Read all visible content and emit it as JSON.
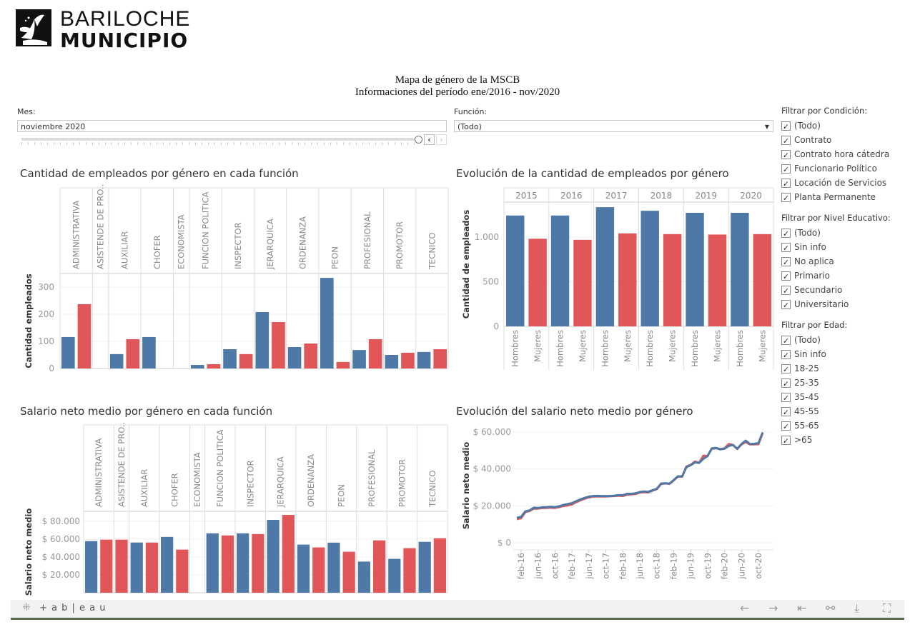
{
  "logo": {
    "line1": "BARILOCHE",
    "line2": "MUNICIPIO"
  },
  "header": {
    "title": "Mapa de género de la MSCB",
    "subtitle": "Informaciones del período ene/2016 - nov/2020"
  },
  "controls": {
    "mes_label": "Mes:",
    "mes_value": "noviembre 2020",
    "slider_position": 1.0,
    "funcion_label": "Función:",
    "funcion_value": "(Todo)"
  },
  "filters": [
    {
      "title": "Filtrar por Condición:",
      "items": [
        "(Todo)",
        "Contrato",
        "Contrato hora cátedra",
        "Funcionario Político",
        "Locación de Servicios",
        "Planta Permanente"
      ]
    },
    {
      "title": "Filtrar por Nivel Educativo:",
      "items": [
        "(Todo)",
        "Sin info",
        "No aplica",
        "Primario",
        "Secundario",
        "Universitario"
      ]
    },
    {
      "title": "Filtrar por Edad:",
      "items": [
        "(Todo)",
        "Sin info",
        "18-25",
        "25-35",
        "35-45",
        "45-55",
        "55-65",
        ">65"
      ]
    }
  ],
  "colors": {
    "hombres": "#4e79a7",
    "mujeres": "#e15759"
  },
  "toolbar": {
    "brand": "+ a b | e a u"
  },
  "chart_data": [
    {
      "type": "bar",
      "title": "Cantidad de empleados por género en cada función",
      "ylabel": "Cantidad empleados",
      "ylim": [
        0,
        350
      ],
      "yticks": [
        0,
        100,
        200,
        300
      ],
      "ytick_labels": [
        "0",
        "100",
        "200",
        "300"
      ],
      "categories": [
        "ADMINISTRATIVA",
        "ASISTENDE DE PRO..",
        "AUXILIAR",
        "CHOFER",
        "ECONOMISTA",
        "FUNCION POLITICA",
        "INSPECTOR",
        "JERARQUICA",
        "ORDENANZA",
        "PEON",
        "PROFESIONAL",
        "PROMOTOR",
        "TECNICO"
      ],
      "series": [
        {
          "name": "Hombres",
          "values": [
            116,
            null,
            53,
            116,
            null,
            13,
            71,
            208,
            79,
            334,
            68,
            50,
            61
          ]
        },
        {
          "name": "Mujeres",
          "values": [
            237,
            null,
            108,
            0,
            null,
            16,
            53,
            171,
            92,
            24,
            108,
            58,
            71
          ]
        }
      ]
    },
    {
      "type": "bar",
      "title": "Evolución de la cantidad de empleados por género",
      "ylabel": "Cantidad de empleados",
      "ylim": [
        0,
        1390
      ],
      "yticks": [
        0,
        500,
        1000
      ],
      "ytick_labels": [
        "0",
        "500",
        "1.000"
      ],
      "categories": [
        "2015",
        "2016",
        "2017",
        "2018",
        "2019",
        "2020"
      ],
      "series": [
        {
          "name": "Hombres",
          "values": [
            1240,
            1240,
            1333,
            1293,
            1270,
            1270
          ]
        },
        {
          "name": "Mujeres",
          "values": [
            980,
            968,
            1040,
            1032,
            1027,
            1032
          ]
        }
      ]
    },
    {
      "type": "bar",
      "title": "Salario neto medio por género en cada función",
      "ylabel": "Salario neto medio",
      "ylim": [
        0,
        91000
      ],
      "yticks": [
        20000,
        40000,
        60000,
        80000
      ],
      "ytick_labels": [
        "$ 20.000",
        "$ 40.000",
        "$ 60.000",
        "$ 80.000"
      ],
      "categories": [
        "ADMINISTRATIVA",
        "ASISTENDE DE PRO..",
        "AUXILIAR",
        "CHOFER",
        "ECONOMISTA",
        "FUNCION POLITICA",
        "INSPECTOR",
        "JERARQUICA",
        "ORDENANZA",
        "PEON",
        "PROFESIONAL",
        "PROMOTOR",
        "TECNICO"
      ],
      "series": [
        {
          "name": "Hombres",
          "values": [
            57700,
            null,
            56100,
            62400,
            null,
            66400,
            66400,
            81400,
            53800,
            56000,
            34800,
            37900,
            56900
          ]
        },
        {
          "name": "Mujeres",
          "values": [
            59300,
            59300,
            56100,
            48200,
            null,
            64000,
            65600,
            87000,
            50600,
            45800,
            58500,
            49800,
            60900
          ]
        }
      ]
    },
    {
      "type": "line",
      "title": "Evolución del salario neto medio por género",
      "ylabel": "Salario neto medio",
      "ylim": [
        0,
        65800
      ],
      "yticks": [
        0,
        20000,
        40000,
        60000
      ],
      "ytick_labels": [
        "$ 0",
        "$ 20.000",
        "$ 40.000",
        "$ 60.000"
      ],
      "x_range_months": [
        0,
        58
      ],
      "xticks": [
        1,
        5,
        9,
        13,
        17,
        21,
        25,
        29,
        33,
        37,
        41,
        45,
        49,
        53,
        57
      ],
      "xtick_labels": [
        "feb-16",
        "jun-16",
        "oct-16",
        "feb-17",
        "jun-17",
        "oct-17",
        "feb-18",
        "jun-18",
        "oct-18",
        "feb-19",
        "jun-19",
        "oct-19",
        "feb-20",
        "jun-20",
        "oct-20"
      ],
      "series": [
        {
          "name": "Mujeres",
          "values": [
            12800,
            13300,
            16600,
            17200,
            18500,
            18500,
            18800,
            18900,
            19000,
            18900,
            19300,
            19900,
            20300,
            20800,
            22000,
            23000,
            23900,
            24600,
            25000,
            25100,
            25100,
            25100,
            25200,
            25300,
            25500,
            25300,
            26000,
            26200,
            26400,
            27200,
            27400,
            27300,
            28200,
            29000,
            31800,
            32200,
            31900,
            33800,
            35800,
            35800,
            41300,
            42200,
            44000,
            43300,
            47200,
            47000,
            51000,
            51200,
            50800,
            51200,
            53500,
            53000,
            50800,
            53300,
            54600,
            53300,
            53300,
            53400,
            59500
          ]
        },
        {
          "name": "Hombres",
          "values": [
            13500,
            14000,
            17000,
            17500,
            19000,
            18800,
            19200,
            19300,
            19500,
            19300,
            19800,
            20500,
            21000,
            21500,
            22500,
            23500,
            24300,
            25000,
            25300,
            25400,
            25300,
            25300,
            25300,
            25500,
            25800,
            25800,
            26500,
            26500,
            26800,
            27500,
            27800,
            27600,
            28500,
            29200,
            32000,
            32300,
            32000,
            34000,
            36000,
            36000,
            41000,
            42000,
            43500,
            43300,
            45500,
            47000,
            51200,
            51400,
            50600,
            51000,
            52500,
            53000,
            51000,
            53500,
            55300,
            53500,
            53600,
            54000,
            59800
          ]
        }
      ]
    }
  ]
}
